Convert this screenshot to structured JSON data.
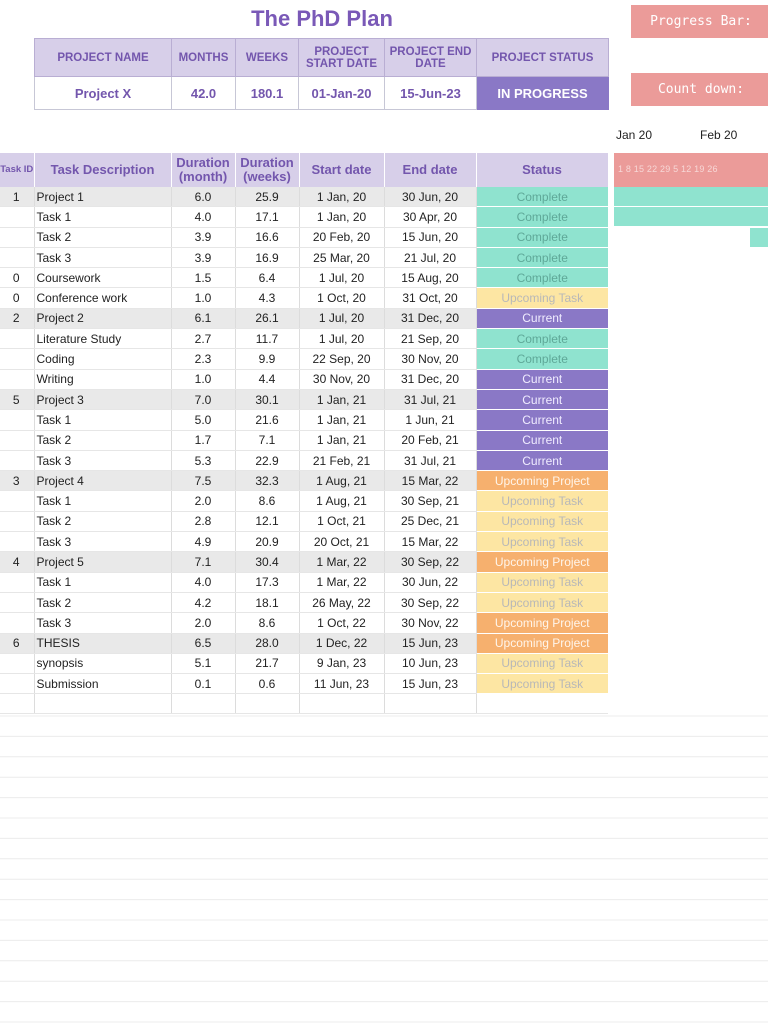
{
  "title": "The PhD Plan",
  "buttons": {
    "progress": "Progress Bar:",
    "countdown": "Count down:"
  },
  "summary": {
    "headers": [
      "PROJECT NAME",
      "MONTHS",
      "WEEKS",
      "PROJECT START DATE",
      "PROJECT END DATE",
      "PROJECT STATUS"
    ],
    "values": [
      "Project X",
      "42.0",
      "180.1",
      "01-Jan-20",
      "15-Jun-23",
      "IN PROGRESS"
    ]
  },
  "gantt": {
    "months": [
      "Jan 20",
      "Feb 20"
    ],
    "days": "1  8  15 22 29  5  12 19 26",
    "colors": {
      "complete": "#8fe3cf",
      "header": "#eb9b99"
    }
  },
  "table": {
    "headers": {
      "id": "Task ID",
      "desc": "Task Description",
      "dur_month": "Duration (month)",
      "dur_weeks": "Duration (weeks)",
      "start": "Start date",
      "end": "End date",
      "status": "Status"
    },
    "rows": [
      {
        "id": "1",
        "desc": "Project 1",
        "m": "6.0",
        "w": "25.9",
        "start": "1 Jan, 20",
        "end": "30 Jun, 20",
        "status": "Complete",
        "project": true
      },
      {
        "id": "",
        "desc": "Task 1",
        "m": "4.0",
        "w": "17.1",
        "start": "1 Jan, 20",
        "end": "30 Apr, 20",
        "status": "Complete"
      },
      {
        "id": "",
        "desc": "Task 2",
        "m": "3.9",
        "w": "16.6",
        "start": "20 Feb, 20",
        "end": "15 Jun, 20",
        "status": "Complete"
      },
      {
        "id": "",
        "desc": "Task 3",
        "m": "3.9",
        "w": "16.9",
        "start": "25 Mar, 20",
        "end": "21 Jul, 20",
        "status": "Complete"
      },
      {
        "id": "0",
        "desc": "Coursework",
        "m": "1.5",
        "w": "6.4",
        "start": "1 Jul, 20",
        "end": "15 Aug, 20",
        "status": "Complete"
      },
      {
        "id": "0",
        "desc": "Conference work",
        "m": "1.0",
        "w": "4.3",
        "start": "1 Oct, 20",
        "end": "31 Oct, 20",
        "status": "Upcoming Task"
      },
      {
        "id": "2",
        "desc": "Project 2",
        "m": "6.1",
        "w": "26.1",
        "start": "1 Jul, 20",
        "end": "31 Dec, 20",
        "status": "Current",
        "project": true
      },
      {
        "id": "",
        "desc": "Literature Study",
        "m": "2.7",
        "w": "11.7",
        "start": "1 Jul, 20",
        "end": "21 Sep, 20",
        "status": "Complete"
      },
      {
        "id": "",
        "desc": "Coding",
        "m": "2.3",
        "w": "9.9",
        "start": "22 Sep, 20",
        "end": "30 Nov, 20",
        "status": "Complete"
      },
      {
        "id": "",
        "desc": "Writing",
        "m": "1.0",
        "w": "4.4",
        "start": "30 Nov, 20",
        "end": "31 Dec, 20",
        "status": "Current"
      },
      {
        "id": "5",
        "desc": "Project 3",
        "m": "7.0",
        "w": "30.1",
        "start": "1 Jan, 21",
        "end": "31 Jul, 21",
        "status": "Current",
        "project": true
      },
      {
        "id": "",
        "desc": "Task 1",
        "m": "5.0",
        "w": "21.6",
        "start": "1 Jan, 21",
        "end": "1 Jun, 21",
        "status": "Current"
      },
      {
        "id": "",
        "desc": "Task 2",
        "m": "1.7",
        "w": "7.1",
        "start": "1 Jan, 21",
        "end": "20 Feb, 21",
        "status": "Current"
      },
      {
        "id": "",
        "desc": "Task 3",
        "m": "5.3",
        "w": "22.9",
        "start": "21 Feb, 21",
        "end": "31 Jul, 21",
        "status": "Current"
      },
      {
        "id": "3",
        "desc": "Project 4",
        "m": "7.5",
        "w": "32.3",
        "start": "1 Aug, 21",
        "end": "15 Mar, 22",
        "status": "Upcoming Project",
        "project": true
      },
      {
        "id": "",
        "desc": "Task 1",
        "m": "2.0",
        "w": "8.6",
        "start": "1 Aug, 21",
        "end": "30 Sep, 21",
        "status": "Upcoming Task"
      },
      {
        "id": "",
        "desc": "Task 2",
        "m": "2.8",
        "w": "12.1",
        "start": "1 Oct, 21",
        "end": "25 Dec, 21",
        "status": "Upcoming Task"
      },
      {
        "id": "",
        "desc": "Task 3",
        "m": "4.9",
        "w": "20.9",
        "start": "20 Oct, 21",
        "end": "15 Mar, 22",
        "status": "Upcoming Task"
      },
      {
        "id": "4",
        "desc": "Project 5",
        "m": "7.1",
        "w": "30.4",
        "start": "1 Mar, 22",
        "end": "30 Sep, 22",
        "status": "Upcoming Project",
        "project": true
      },
      {
        "id": "",
        "desc": "Task 1",
        "m": "4.0",
        "w": "17.3",
        "start": "1 Mar, 22",
        "end": "30 Jun, 22",
        "status": "Upcoming Task"
      },
      {
        "id": "",
        "desc": "Task 2",
        "m": "4.2",
        "w": "18.1",
        "start": "26 May, 22",
        "end": "30 Sep, 22",
        "status": "Upcoming Task"
      },
      {
        "id": "",
        "desc": "Task 3",
        "m": "2.0",
        "w": "8.6",
        "start": "1 Oct, 22",
        "end": "30 Nov, 22",
        "status": "Upcoming Project"
      },
      {
        "id": "6",
        "desc": "THESIS",
        "m": "6.5",
        "w": "28.0",
        "start": "1 Dec, 22",
        "end": "15 Jun, 23",
        "status": "Upcoming Project",
        "project": true
      },
      {
        "id": "",
        "desc": "synopsis",
        "m": "5.1",
        "w": "21.7",
        "start": "9 Jan, 23",
        "end": "10 Jun, 23",
        "status": "Upcoming Task"
      },
      {
        "id": "",
        "desc": "Submission",
        "m": "0.1",
        "w": "0.6",
        "start": "11 Jun, 23",
        "end": "15 Jun, 23",
        "status": "Upcoming Task"
      }
    ]
  }
}
